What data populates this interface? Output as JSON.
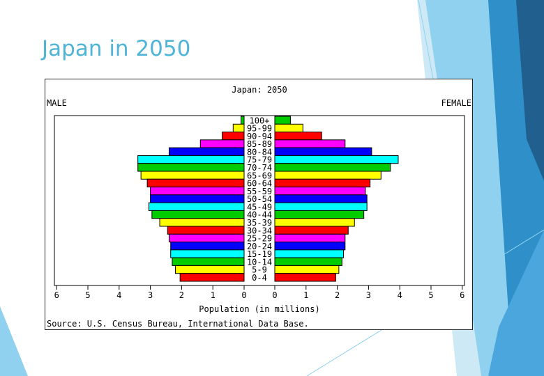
{
  "slide": {
    "title": "Japan in 2050"
  },
  "colors": {
    "accent": "#4fb4d6",
    "cycle": [
      "#ff0000",
      "#ffff00",
      "#00cc00",
      "#00ffff",
      "#0000ff",
      "#ff00ff"
    ]
  },
  "chart_data": {
    "type": "bar",
    "title": "Japan: 2050",
    "left_label": "MALE",
    "right_label": "FEMALE",
    "xlabel": "Population (in millions)",
    "source": "Source: U.S. Census Bureau, International Data Base.",
    "categories": [
      "100+",
      "95-99",
      "90-94",
      "85-89",
      "80-84",
      "75-79",
      "70-74",
      "65-69",
      "60-64",
      "55-59",
      "50-54",
      "45-49",
      "40-44",
      "35-39",
      "30-34",
      "25-29",
      "20-24",
      "15-19",
      "10-14",
      "5-9",
      "0-4"
    ],
    "xlim": [
      0,
      6
    ],
    "ticks": [
      0,
      1,
      2,
      3,
      4,
      5,
      6
    ],
    "tick_labels_left": [
      "0",
      "1",
      "2",
      "3",
      "4",
      "5",
      "6"
    ],
    "tick_labels_right": [
      "0",
      "1",
      "2",
      "3",
      "4",
      "5",
      "6"
    ],
    "series": [
      {
        "name": "MALE",
        "values": [
          0.1,
          0.35,
          0.7,
          1.4,
          2.4,
          3.4,
          3.4,
          3.3,
          3.1,
          3.0,
          3.0,
          3.05,
          2.95,
          2.7,
          2.45,
          2.4,
          2.35,
          2.35,
          2.3,
          2.2,
          2.05
        ]
      },
      {
        "name": "FEMALE",
        "values": [
          0.5,
          0.9,
          1.5,
          2.25,
          3.1,
          3.95,
          3.7,
          3.4,
          3.05,
          2.9,
          2.95,
          2.95,
          2.85,
          2.55,
          2.35,
          2.25,
          2.25,
          2.2,
          2.15,
          2.05,
          1.95
        ]
      }
    ]
  }
}
